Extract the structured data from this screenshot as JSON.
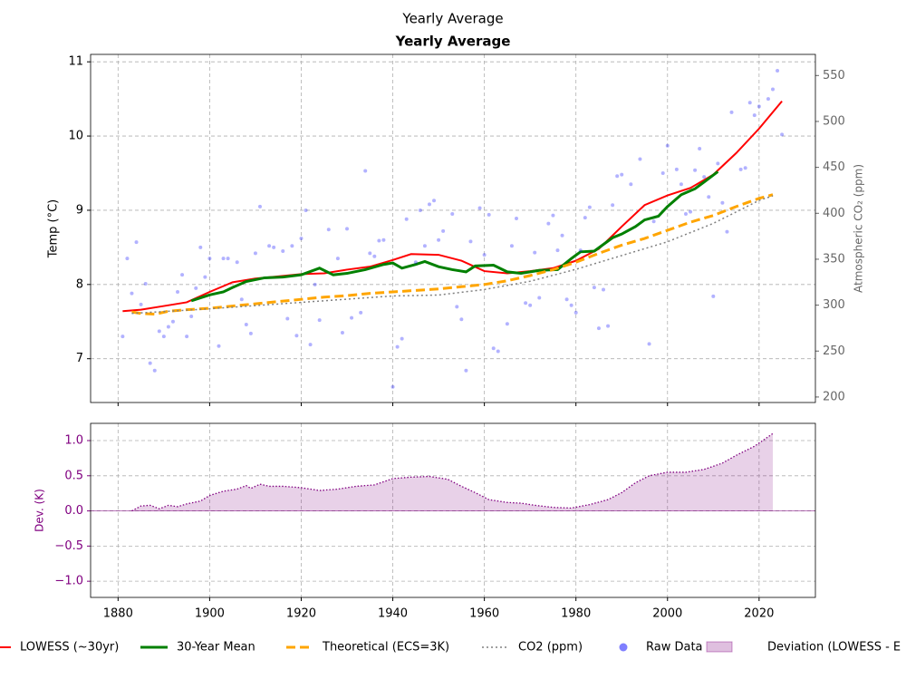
{
  "suptitle": "Yearly Average",
  "chart_data": [
    {
      "type": "line",
      "title": "Yearly Average",
      "ylabel": "Temp (°C)",
      "y2label": "Atmospheric CO₂ (ppm)",
      "ylim": [
        6.41,
        11.1
      ],
      "yticks": [
        7,
        8,
        9,
        10,
        11
      ],
      "y2lim": [
        194,
        573
      ],
      "y2ticks": [
        200,
        250,
        300,
        350,
        400,
        450,
        500,
        550
      ],
      "grid": true,
      "series": [
        {
          "name": "LOWESS (~30yr)",
          "color": "red",
          "width": 2,
          "dash": "solid",
          "x": [
            1881,
            1885,
            1890,
            1895,
            1900,
            1905,
            1910,
            1915,
            1920,
            1925,
            1930,
            1935,
            1940,
            1944,
            1950,
            1955,
            1960,
            1965,
            1970,
            1975,
            1980,
            1985,
            1990,
            1995,
            2000,
            2005,
            2010,
            2015,
            2020,
            2025
          ],
          "values": [
            7.64,
            7.66,
            7.71,
            7.76,
            7.9,
            8.03,
            8.08,
            8.11,
            8.14,
            8.15,
            8.2,
            8.24,
            8.33,
            8.41,
            8.4,
            8.32,
            8.18,
            8.15,
            8.18,
            8.22,
            8.32,
            8.48,
            8.78,
            9.07,
            9.2,
            9.3,
            9.48,
            9.77,
            10.1,
            10.47
          ]
        },
        {
          "name": "30-Year Mean",
          "color": "green",
          "width": 3,
          "dash": "solid",
          "x": [
            1896,
            1900,
            1903,
            1905,
            1908,
            1912,
            1916,
            1920,
            1924,
            1927,
            1930,
            1934,
            1938,
            1940,
            1942,
            1945,
            1947,
            1950,
            1953,
            1956,
            1958,
            1962,
            1965,
            1968,
            1972,
            1976,
            1979,
            1981,
            1984,
            1988,
            1990,
            1993,
            1995,
            1998,
            2000,
            2003,
            2006,
            2008,
            2011
          ],
          "values": [
            7.78,
            7.86,
            7.9,
            7.96,
            8.04,
            8.09,
            8.1,
            8.13,
            8.22,
            8.13,
            8.15,
            8.2,
            8.27,
            8.29,
            8.22,
            8.27,
            8.31,
            8.24,
            8.2,
            8.17,
            8.25,
            8.26,
            8.17,
            8.15,
            8.19,
            8.2,
            8.35,
            8.44,
            8.45,
            8.63,
            8.68,
            8.78,
            8.87,
            8.92,
            9.05,
            9.21,
            9.29,
            9.38,
            9.52
          ]
        },
        {
          "name": "Theoretical (ECS=3K)",
          "color": "orange",
          "width": 3,
          "dash": "dashed",
          "x": [
            1883,
            1885,
            1888,
            1891,
            1895,
            1900,
            1905,
            1910,
            1915,
            1920,
            1925,
            1930,
            1935,
            1940,
            1945,
            1950,
            1955,
            1960,
            1965,
            1970,
            1975,
            1980,
            1985,
            1990,
            1995,
            2000,
            2005,
            2010,
            2015,
            2020,
            2023
          ],
          "values": [
            7.63,
            7.61,
            7.6,
            7.64,
            7.66,
            7.68,
            7.71,
            7.74,
            7.77,
            7.8,
            7.83,
            7.85,
            7.88,
            7.9,
            7.92,
            7.94,
            7.97,
            8.0,
            8.05,
            8.12,
            8.2,
            8.3,
            8.42,
            8.53,
            8.62,
            8.73,
            8.84,
            8.93,
            9.05,
            9.16,
            9.21
          ]
        },
        {
          "name": "CO2 (ppm)",
          "color": "gray",
          "width": 1.5,
          "dash": "dotted",
          "axis": "y2",
          "x": [
            1883,
            1900,
            1920,
            1940,
            1950,
            1960,
            1970,
            1980,
            1990,
            2000,
            2010,
            2020,
            2023
          ],
          "values": [
            291,
            296,
            303,
            310,
            311,
            317,
            326,
            339,
            354,
            369,
            389,
            414,
            419
          ]
        },
        {
          "name": "Raw Data",
          "color": "blue",
          "type": "scatter",
          "x": [
            1881,
            1882,
            1883,
            1884,
            1885,
            1886,
            1887,
            1888,
            1889,
            1890,
            1891,
            1892,
            1893,
            1894,
            1895,
            1896,
            1897,
            1898,
            1899,
            1900,
            1902,
            1903,
            1904,
            1906,
            1907,
            1908,
            1909,
            1910,
            1911,
            1913,
            1914,
            1916,
            1917,
            1918,
            1919,
            1920,
            1921,
            1922,
            1923,
            1924,
            1926,
            1928,
            1929,
            1930,
            1931,
            1933,
            1934,
            1935,
            1936,
            1937,
            1938,
            1940,
            1941,
            1942,
            1943,
            1945,
            1946,
            1947,
            1948,
            1949,
            1950,
            1951,
            1953,
            1954,
            1955,
            1956,
            1957,
            1959,
            1960,
            1961,
            1962,
            1963,
            1965,
            1966,
            1967,
            1969,
            1970,
            1971,
            1972,
            1974,
            1975,
            1976,
            1977,
            1978,
            1979,
            1980,
            1981,
            1982,
            1983,
            1984,
            1985,
            1986,
            1987,
            1988,
            1989,
            1990,
            1992,
            1994,
            1996,
            1997,
            1999,
            2000,
            2002,
            2003,
            2004,
            2005,
            2006,
            2007,
            2008,
            2009,
            2010,
            2011,
            2012,
            2013,
            2014,
            2016,
            2017,
            2018,
            2019,
            2020,
            2022,
            2023,
            2024,
            2025
          ],
          "values": [
            7.3,
            8.35,
            7.88,
            8.57,
            7.73,
            8.01,
            6.94,
            6.84,
            7.37,
            7.3,
            7.43,
            7.5,
            7.9,
            8.13,
            7.3,
            7.57,
            7.95,
            8.5,
            8.1,
            8.35,
            7.17,
            8.35,
            8.35,
            8.3,
            7.8,
            7.46,
            7.34,
            8.42,
            9.05,
            8.52,
            8.5,
            8.45,
            7.54,
            8.52,
            7.31,
            8.62,
            9.0,
            7.19,
            8.0,
            7.52,
            8.74,
            8.35,
            7.35,
            8.75,
            7.55,
            7.62,
            9.53,
            8.42,
            8.38,
            8.59,
            8.6,
            6.62,
            7.16,
            7.27,
            8.88,
            8.3,
            9.0,
            8.52,
            9.08,
            9.13,
            8.6,
            8.72,
            8.95,
            7.7,
            7.53,
            6.84,
            8.58,
            9.03,
            8.4,
            8.94,
            7.14,
            7.1,
            7.47,
            8.52,
            8.89,
            7.75,
            7.72,
            8.43,
            7.82,
            8.82,
            8.93,
            8.46,
            8.66,
            7.8,
            7.72,
            7.62,
            8.46,
            8.9,
            9.04,
            7.96,
            7.41,
            7.93,
            7.44,
            9.07,
            9.46,
            9.48,
            9.35,
            9.69,
            7.2,
            8.85,
            9.5,
            9.87,
            9.55,
            9.35,
            8.95,
            8.98,
            9.54,
            9.83,
            9.45,
            9.18,
            7.84,
            9.63,
            9.1,
            8.71,
            10.32,
            9.55,
            9.57,
            10.45,
            10.28,
            10.4,
            10.5,
            10.63,
            10.88,
            10.02
          ]
        }
      ]
    },
    {
      "type": "area",
      "ylabel": "Dev. (K)",
      "xlim": [
        1874,
        2032.3
      ],
      "xticks": [
        1880,
        1900,
        1920,
        1940,
        1960,
        1980,
        2000,
        2020
      ],
      "ylim": [
        -1.23,
        1.245
      ],
      "yticks": [
        {
          "value": -1,
          "label": "−1.0"
        },
        {
          "value": -0.5,
          "label": "−0.5"
        },
        {
          "value": 0,
          "label": "0.0"
        },
        0.5,
        {
          "value": 1,
          "label": "1.0"
        }
      ],
      "grid": true,
      "series": [
        {
          "name": "Deviation (LOWESS - E",
          "color": "purple",
          "x": [
            1883,
            1885,
            1887,
            1889,
            1891,
            1893,
            1895,
            1898,
            1900,
            1903,
            1906,
            1908,
            1909,
            1911,
            1913,
            1916,
            1920,
            1924,
            1928,
            1932,
            1936,
            1940,
            1944,
            1948,
            1952,
            1955,
            1958,
            1961,
            1965,
            1968,
            1971,
            1975,
            1979,
            1983,
            1987,
            1990,
            1993,
            1996,
            2000,
            2004,
            2008,
            2012,
            2015,
            2019,
            2023
          ],
          "values": [
            0,
            0.07,
            0.08,
            0.03,
            0.08,
            0.06,
            0.1,
            0.14,
            0.22,
            0.28,
            0.31,
            0.36,
            0.32,
            0.38,
            0.35,
            0.35,
            0.33,
            0.29,
            0.31,
            0.35,
            0.37,
            0.46,
            0.48,
            0.49,
            0.45,
            0.35,
            0.26,
            0.16,
            0.12,
            0.11,
            0.08,
            0.05,
            0.04,
            0.09,
            0.16,
            0.26,
            0.4,
            0.5,
            0.55,
            0.55,
            0.59,
            0.68,
            0.79,
            0.92,
            1.1
          ]
        }
      ]
    }
  ]
}
